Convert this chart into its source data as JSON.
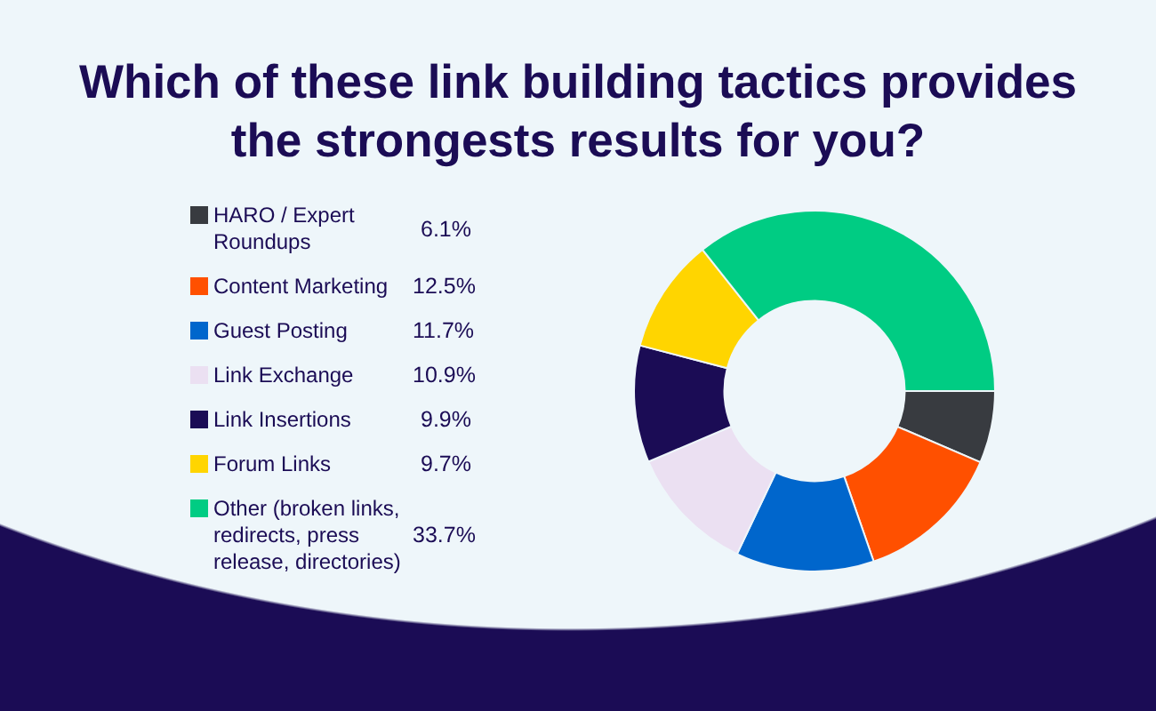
{
  "chart_data": {
    "type": "donut",
    "title": "Which of these link building tactics provides the strongests results for you?",
    "categories": [
      "HARO / Expert Roundups",
      "Content Marketing",
      "Guest Posting",
      "Link Exchange",
      "Link Insertions",
      "Forum Links",
      "Other (broken links, redirects, press release, directories)"
    ],
    "values": [
      6.1,
      12.5,
      11.7,
      10.9,
      9.9,
      9.7,
      33.7
    ],
    "value_labels": [
      "6.1%",
      "12.5%",
      "11.7%",
      "10.9%",
      "9.9%",
      "9.7%",
      "33.7%"
    ],
    "colors": [
      "#383b40",
      "#ff5000",
      "#0066cc",
      "#ebe0f2",
      "#1b0c55",
      "#ffd500",
      "#00cc83"
    ],
    "legend": "left"
  }
}
